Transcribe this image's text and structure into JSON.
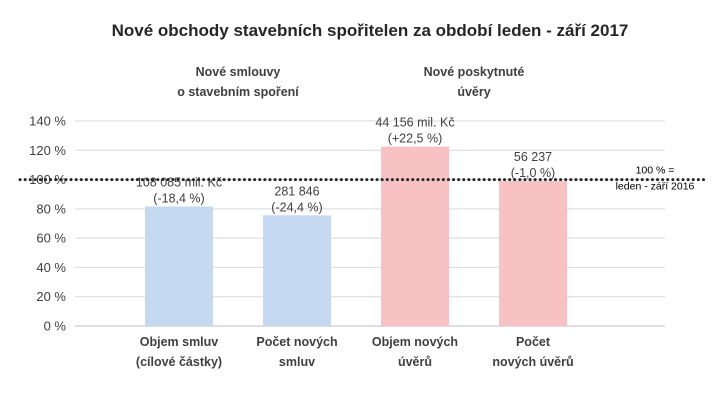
{
  "chart_data": {
    "type": "bar",
    "title": "Nové obchody stavebních spořitelen za období leden - září 2017",
    "group_labels": [
      [
        "Nové smlouvy",
        "o stavebním spoření"
      ],
      [
        "Nové poskytnuté",
        "úvěry"
      ]
    ],
    "categories": [
      [
        "Objem smluv",
        "(cílové částky)"
      ],
      [
        "Počet  nových",
        "smluv"
      ],
      [
        "Objem nových",
        "úvěrů"
      ],
      [
        "Počet",
        "nových úvěrů"
      ]
    ],
    "values": [
      81.6,
      75.6,
      122.5,
      99.0
    ],
    "data_labels": [
      [
        "108 085 mil. Kč",
        "(-18,4  %)"
      ],
      [
        "281 846",
        "(-24,4 %)"
      ],
      [
        "44 156 mil. Kč",
        "(+22,5 %)"
      ],
      [
        "56 237",
        "(-1,0 %)"
      ]
    ],
    "bar_colors": [
      "#c5d9f1",
      "#c5d9f1",
      "#f8c1c3",
      "#f8c1c3"
    ],
    "yticks": [
      "0 %",
      "20 %",
      "40 %",
      "60 %",
      "80 %",
      "100 %",
      "120 %",
      "140 %"
    ],
    "ylim": [
      0,
      140
    ],
    "grid": true,
    "reference_line": {
      "value": 100,
      "style": "dotted",
      "color": "#262626",
      "label": [
        "100 % =",
        "leden - září 2016"
      ]
    },
    "xlabel": "",
    "ylabel": ""
  }
}
